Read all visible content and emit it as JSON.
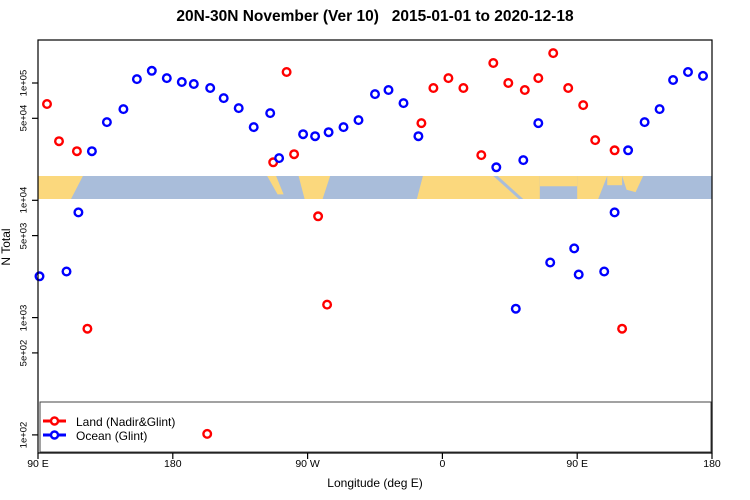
{
  "chart_data": {
    "type": "scatter",
    "title": "20N-30N November (Ver 10)   2015-01-01 to 2020-12-18",
    "xlabel": "Longitude (deg E)",
    "ylabel": "N Total",
    "x_axis": {
      "min": 90,
      "max": 540,
      "ticks": [
        {
          "lon": 90,
          "label": "90 E"
        },
        {
          "lon": 180,
          "label": "180"
        },
        {
          "lon": 270,
          "label": "90 W"
        },
        {
          "lon": 360,
          "label": "0"
        },
        {
          "lon": 450,
          "label": "90 E"
        },
        {
          "lon": 540,
          "label": "180"
        }
      ]
    },
    "y_axis": {
      "scale": "log",
      "ticks": [
        {
          "value": 100000,
          "label": "1e+05"
        },
        {
          "value": 50000,
          "label": "5e+04"
        },
        {
          "value": 10000,
          "label": "1e+04"
        },
        {
          "value": 5000,
          "label": "5e+03"
        },
        {
          "value": 1000,
          "label": "1e+03"
        },
        {
          "value": 500,
          "label": "5e+02"
        },
        {
          "value": 100,
          "label": "1e+02"
        }
      ]
    },
    "series": [
      {
        "name": "Land (Nadir&Glint)",
        "color": "#ff0000",
        "points": [
          [
            96,
            66200
          ],
          [
            104,
            31900
          ],
          [
            116,
            26200
          ],
          [
            247,
            21100
          ],
          [
            256,
            124000
          ],
          [
            261,
            24700
          ],
          [
            346,
            45500
          ],
          [
            354,
            90600
          ],
          [
            364,
            110000
          ],
          [
            374,
            90600
          ],
          [
            386,
            24300
          ],
          [
            394,
            148000
          ],
          [
            404,
            100000
          ],
          [
            415,
            87100
          ],
          [
            424,
            110000
          ],
          [
            434,
            180000
          ],
          [
            444,
            90600
          ],
          [
            454,
            64800
          ],
          [
            462,
            32600
          ],
          [
            475,
            26700
          ],
          [
            123,
            805
          ],
          [
            277,
            7300
          ],
          [
            283,
            1290
          ],
          [
            480,
            805
          ],
          [
            203,
            102
          ]
        ]
      },
      {
        "name": "Ocean (Glint)",
        "color": "#0000ff",
        "points": [
          [
            126,
            26200
          ],
          [
            136,
            46400
          ],
          [
            147,
            59900
          ],
          [
            156,
            108000
          ],
          [
            166,
            127000
          ],
          [
            176,
            110000
          ],
          [
            186,
            102000
          ],
          [
            194,
            98000
          ],
          [
            205,
            90600
          ],
          [
            214,
            74400
          ],
          [
            224,
            61100
          ],
          [
            234,
            42100
          ],
          [
            245,
            55400
          ],
          [
            251,
            22900
          ],
          [
            267,
            36600
          ],
          [
            275,
            35200
          ],
          [
            284,
            38100
          ],
          [
            294,
            42100
          ],
          [
            304,
            48300
          ],
          [
            315,
            80500
          ],
          [
            324,
            87100
          ],
          [
            334,
            67400
          ],
          [
            344,
            35200
          ],
          [
            396,
            19100
          ],
          [
            414,
            22000
          ],
          [
            424,
            45500
          ],
          [
            484,
            26700
          ],
          [
            495,
            46400
          ],
          [
            505,
            59900
          ],
          [
            514,
            106000
          ],
          [
            524,
            124000
          ],
          [
            534,
            115000
          ],
          [
            117,
            7890
          ],
          [
            109,
            2470
          ],
          [
            91,
            2250
          ],
          [
            409,
            1190
          ],
          [
            432,
            2950
          ],
          [
            448,
            3890
          ],
          [
            451,
            2330
          ],
          [
            468,
            2470
          ],
          [
            475,
            7890
          ]
        ]
      }
    ],
    "map_band": {
      "description": "20N-30N latitude strip world map",
      "ocean_color": "#a9bdda",
      "land_color": "#fbd87d",
      "land_polygons": [
        [
          [
            90,
            0
          ],
          [
            120,
            0
          ],
          [
            112,
            1
          ],
          [
            90,
            1
          ]
        ],
        [
          [
            243,
            0
          ],
          [
            249,
            0
          ],
          [
            254,
            0.8
          ],
          [
            250,
            0.8
          ]
        ],
        [
          [
            264,
            0
          ],
          [
            285,
            0
          ],
          [
            280,
            1
          ],
          [
            268,
            1
          ]
        ],
        [
          [
            347,
            0
          ],
          [
            394,
            0
          ],
          [
            411,
            1
          ],
          [
            343,
            1
          ]
        ],
        [
          [
            397,
            0
          ],
          [
            425,
            0
          ],
          [
            425,
            1
          ],
          [
            414,
            1
          ]
        ],
        [
          [
            425,
            0
          ],
          [
            450,
            0
          ],
          [
            450,
            0.45
          ],
          [
            425,
            0.45
          ]
        ],
        [
          [
            450,
            0
          ],
          [
            470,
            0
          ],
          [
            464,
            1
          ],
          [
            450,
            1
          ]
        ],
        [
          [
            470,
            0
          ],
          [
            480,
            0
          ],
          [
            480,
            0.4
          ],
          [
            470,
            0.4
          ]
        ],
        [
          [
            480,
            0
          ],
          [
            494,
            0
          ],
          [
            489,
            0.7
          ],
          [
            483,
            0.6
          ]
        ]
      ]
    },
    "legend_position": "bottomleft"
  }
}
